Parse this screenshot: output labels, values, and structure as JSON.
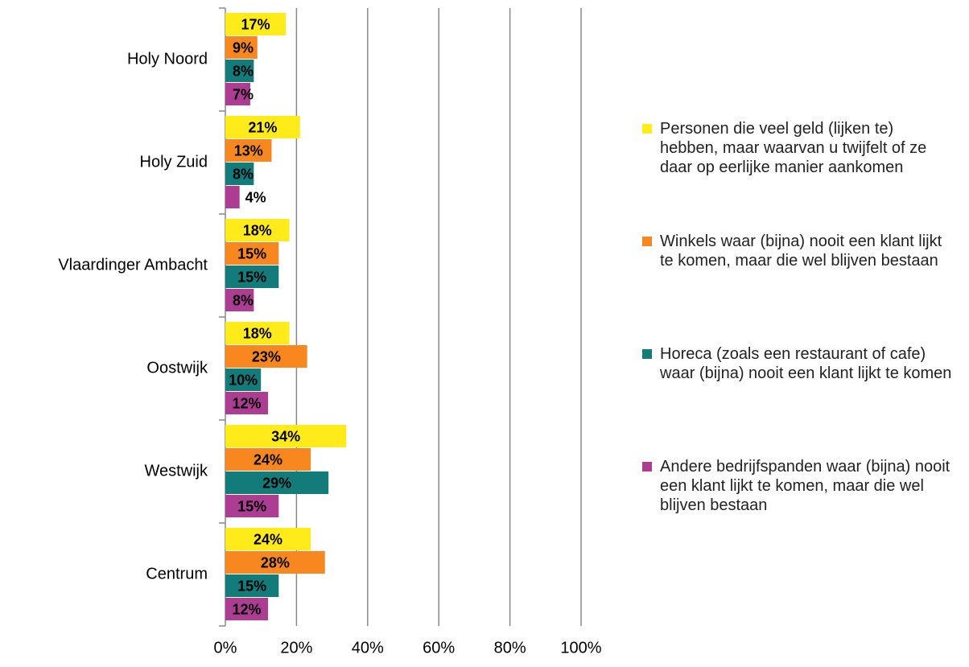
{
  "chart_data": {
    "type": "bar",
    "orientation": "horizontal",
    "categories": [
      "Holy Noord",
      "Holy Zuid",
      "Vlaardinger Ambacht",
      "Oostwijk",
      "Westwijk",
      "Centrum"
    ],
    "series": [
      {
        "name": "Personen die veel geld (lijken te) hebben, maar waarvan u twijfelt of ze daar op eerlijke manier aankomen",
        "color": "#ffea1a",
        "values": [
          17,
          21,
          18,
          18,
          34,
          24
        ],
        "value_labels": [
          "17%",
          "21%",
          "18%",
          "18%",
          "34%",
          "24%"
        ]
      },
      {
        "name": "Winkels waar (bijna) nooit een klant lijkt te komen, maar die wel blijven bestaan",
        "color": "#f7871e",
        "values": [
          9,
          13,
          15,
          23,
          24,
          28
        ],
        "value_labels": [
          "9%",
          "13%",
          "15%",
          "23%",
          "24%",
          "28%"
        ]
      },
      {
        "name": "Horeca (zoals een restaurant of cafe) waar (bijna) nooit een klant lijkt te komen",
        "color": "#147b7b",
        "values": [
          8,
          8,
          15,
          10,
          29,
          15
        ],
        "value_labels": [
          "8%",
          "8%",
          "15%",
          "10%",
          "29%",
          "15%"
        ]
      },
      {
        "name": "Andere bedrijfspanden waar (bijna) nooit een klant lijkt te komen, maar die wel blijven bestaan",
        "color": "#ad3d92",
        "values": [
          7,
          4,
          8,
          12,
          15,
          12
        ],
        "value_labels": [
          "7%",
          "4%",
          "8%",
          "12%",
          "15%",
          "12%"
        ]
      }
    ],
    "xlim": [
      0,
      100
    ],
    "xticks": [
      {
        "value": 0,
        "label": "0%"
      },
      {
        "value": 20,
        "label": "20%"
      },
      {
        "value": 40,
        "label": "40%"
      },
      {
        "value": 60,
        "label": "60%"
      },
      {
        "value": 80,
        "label": "80%"
      },
      {
        "value": 100,
        "label": "100%"
      }
    ],
    "grid": true,
    "legend": "right"
  }
}
